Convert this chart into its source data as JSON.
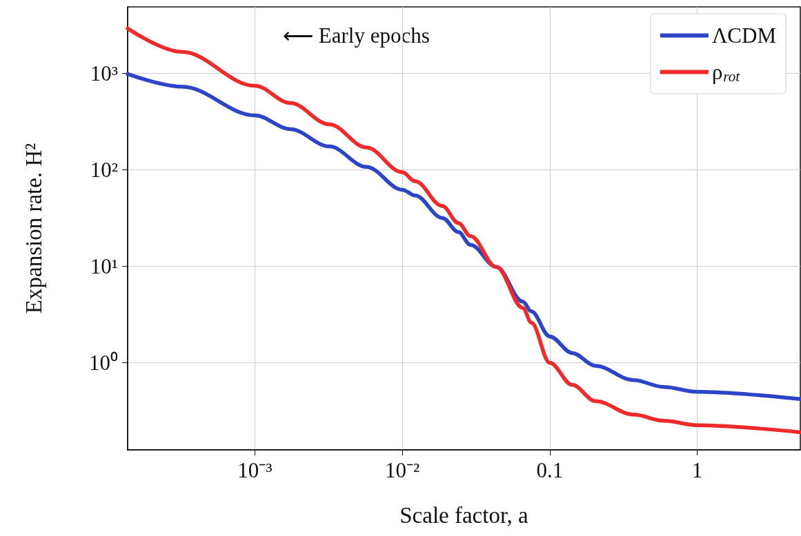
{
  "chart_data": {
    "type": "line",
    "xlabel": "Scale factor, a",
    "ylabel": "Expansion rate. H²",
    "annotations": [
      "⟵ Early epochs"
    ],
    "x": [
      0.000137,
      0.00032,
      0.001,
      0.00174,
      0.0032,
      0.0057,
      0.01,
      0.0122,
      0.0187,
      0.024,
      0.029,
      0.0435,
      0.0656,
      0.075,
      0.1,
      0.142,
      0.204,
      0.37,
      0.596,
      1,
      5.0
    ],
    "series": [
      {
        "name": "ΛCDM",
        "color": "#2b45c6",
        "values": [
          980,
          725,
          365,
          263,
          174,
          107,
          62,
          54,
          31.6,
          22.6,
          16.6,
          9.8,
          4.3,
          3.4,
          1.87,
          1.26,
          0.93,
          0.66,
          0.56,
          0.5,
          0.42
        ]
      },
      {
        "name": "ρ$_{rot}$",
        "color": "#ee2a2a",
        "values": [
          2900,
          1660,
          740,
          490,
          295,
          170,
          94,
          76,
          42,
          28,
          20.5,
          9.8,
          3.7,
          2.6,
          1.0,
          0.59,
          0.4,
          0.29,
          0.25,
          0.225,
          0.19
        ]
      }
    ],
    "log": "xy",
    "xlim": [
      0.000137,
      5.0
    ],
    "ylim": [
      0.125,
      4860
    ],
    "xticks": [
      {
        "value": 0.001,
        "label": "10⁻³"
      },
      {
        "value": 0.01,
        "label": "10⁻²"
      },
      0.1,
      1
    ],
    "yticks": [
      {
        "value": 1,
        "label": "10⁰"
      },
      {
        "value": 10,
        "label": "10¹"
      },
      {
        "value": 100,
        "label": "10²"
      },
      {
        "value": 1000,
        "label": "10³"
      }
    ],
    "grid": true,
    "legend": "top right",
    "marker": "none",
    "line_style": "solid"
  }
}
